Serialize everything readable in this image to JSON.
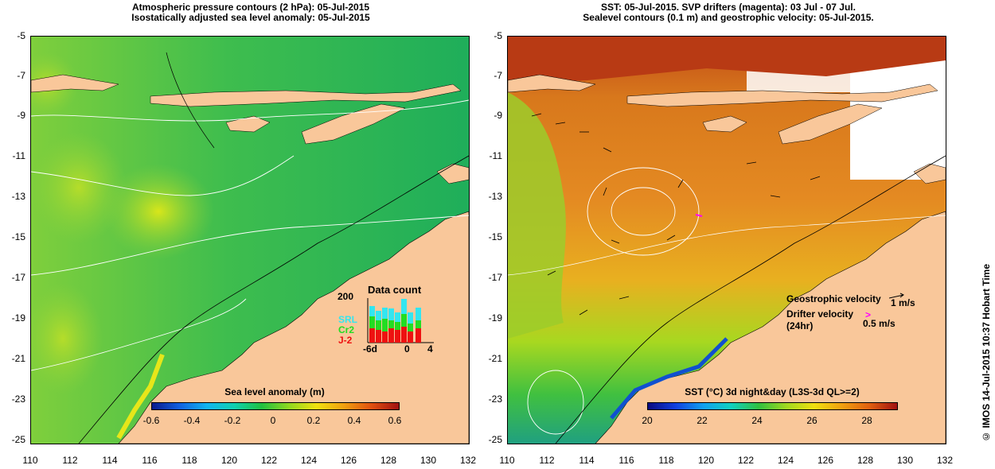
{
  "left_panel": {
    "title_line1": "Atmospheric pressure contours (2 hPa): 05-Jul-2015",
    "title_line2": "Isostatically adjusted sea level anomaly: 05-Jul-2015",
    "colorbar_title": "Sea level anomaly (m)",
    "colorbar_ticks": [
      "-0.6",
      "-0.4",
      "-0.2",
      "0",
      "0.2",
      "0.4",
      "0.6"
    ],
    "inset": {
      "title": "Data count",
      "y_max": "200",
      "x_labels": [
        "-6d",
        "0",
        "4"
      ],
      "series": [
        {
          "name": "SRL",
          "color": "#33e6f0"
        },
        {
          "name": "Cr2",
          "color": "#22dd22"
        },
        {
          "name": "J-2",
          "color": "#ee1111"
        }
      ]
    }
  },
  "right_panel": {
    "title_line1": "SST: 05-Jul-2015. SVP drifters (magenta): 03 Jul - 07 Jul.",
    "title_line2": "Sealevel contours (0.1 m) and geostrophic velocity: 05-Jul-2015.",
    "colorbar_title": "SST (°C) 3d night&day (L3S-3d QL>=2)",
    "colorbar_ticks": [
      "20",
      "22",
      "24",
      "26",
      "28"
    ],
    "legend_geo_label": "Geostrophic velocity",
    "legend_geo_value": "1 m/s",
    "legend_drifter_label": "Drifter velocity",
    "legend_drifter_sub": "(24hr)",
    "legend_drifter_value": "0.5 m/s"
  },
  "axes": {
    "lat_ticks": [
      "-5",
      "-7",
      "-9",
      "-11",
      "-13",
      "-15",
      "-17",
      "-19",
      "-21",
      "-23",
      "-25"
    ],
    "lon_ticks": [
      "110",
      "112",
      "114",
      "116",
      "118",
      "120",
      "122",
      "124",
      "126",
      "128",
      "130",
      "132"
    ]
  },
  "stamp": "© IMOS 14-Jul-2015 10:37 Hobart Time",
  "colors": {
    "land": "#f9c79a",
    "ocean_left": "#3cbf4a",
    "ocean_right": "#e08a2a",
    "drifter": "#ff00ff"
  }
}
